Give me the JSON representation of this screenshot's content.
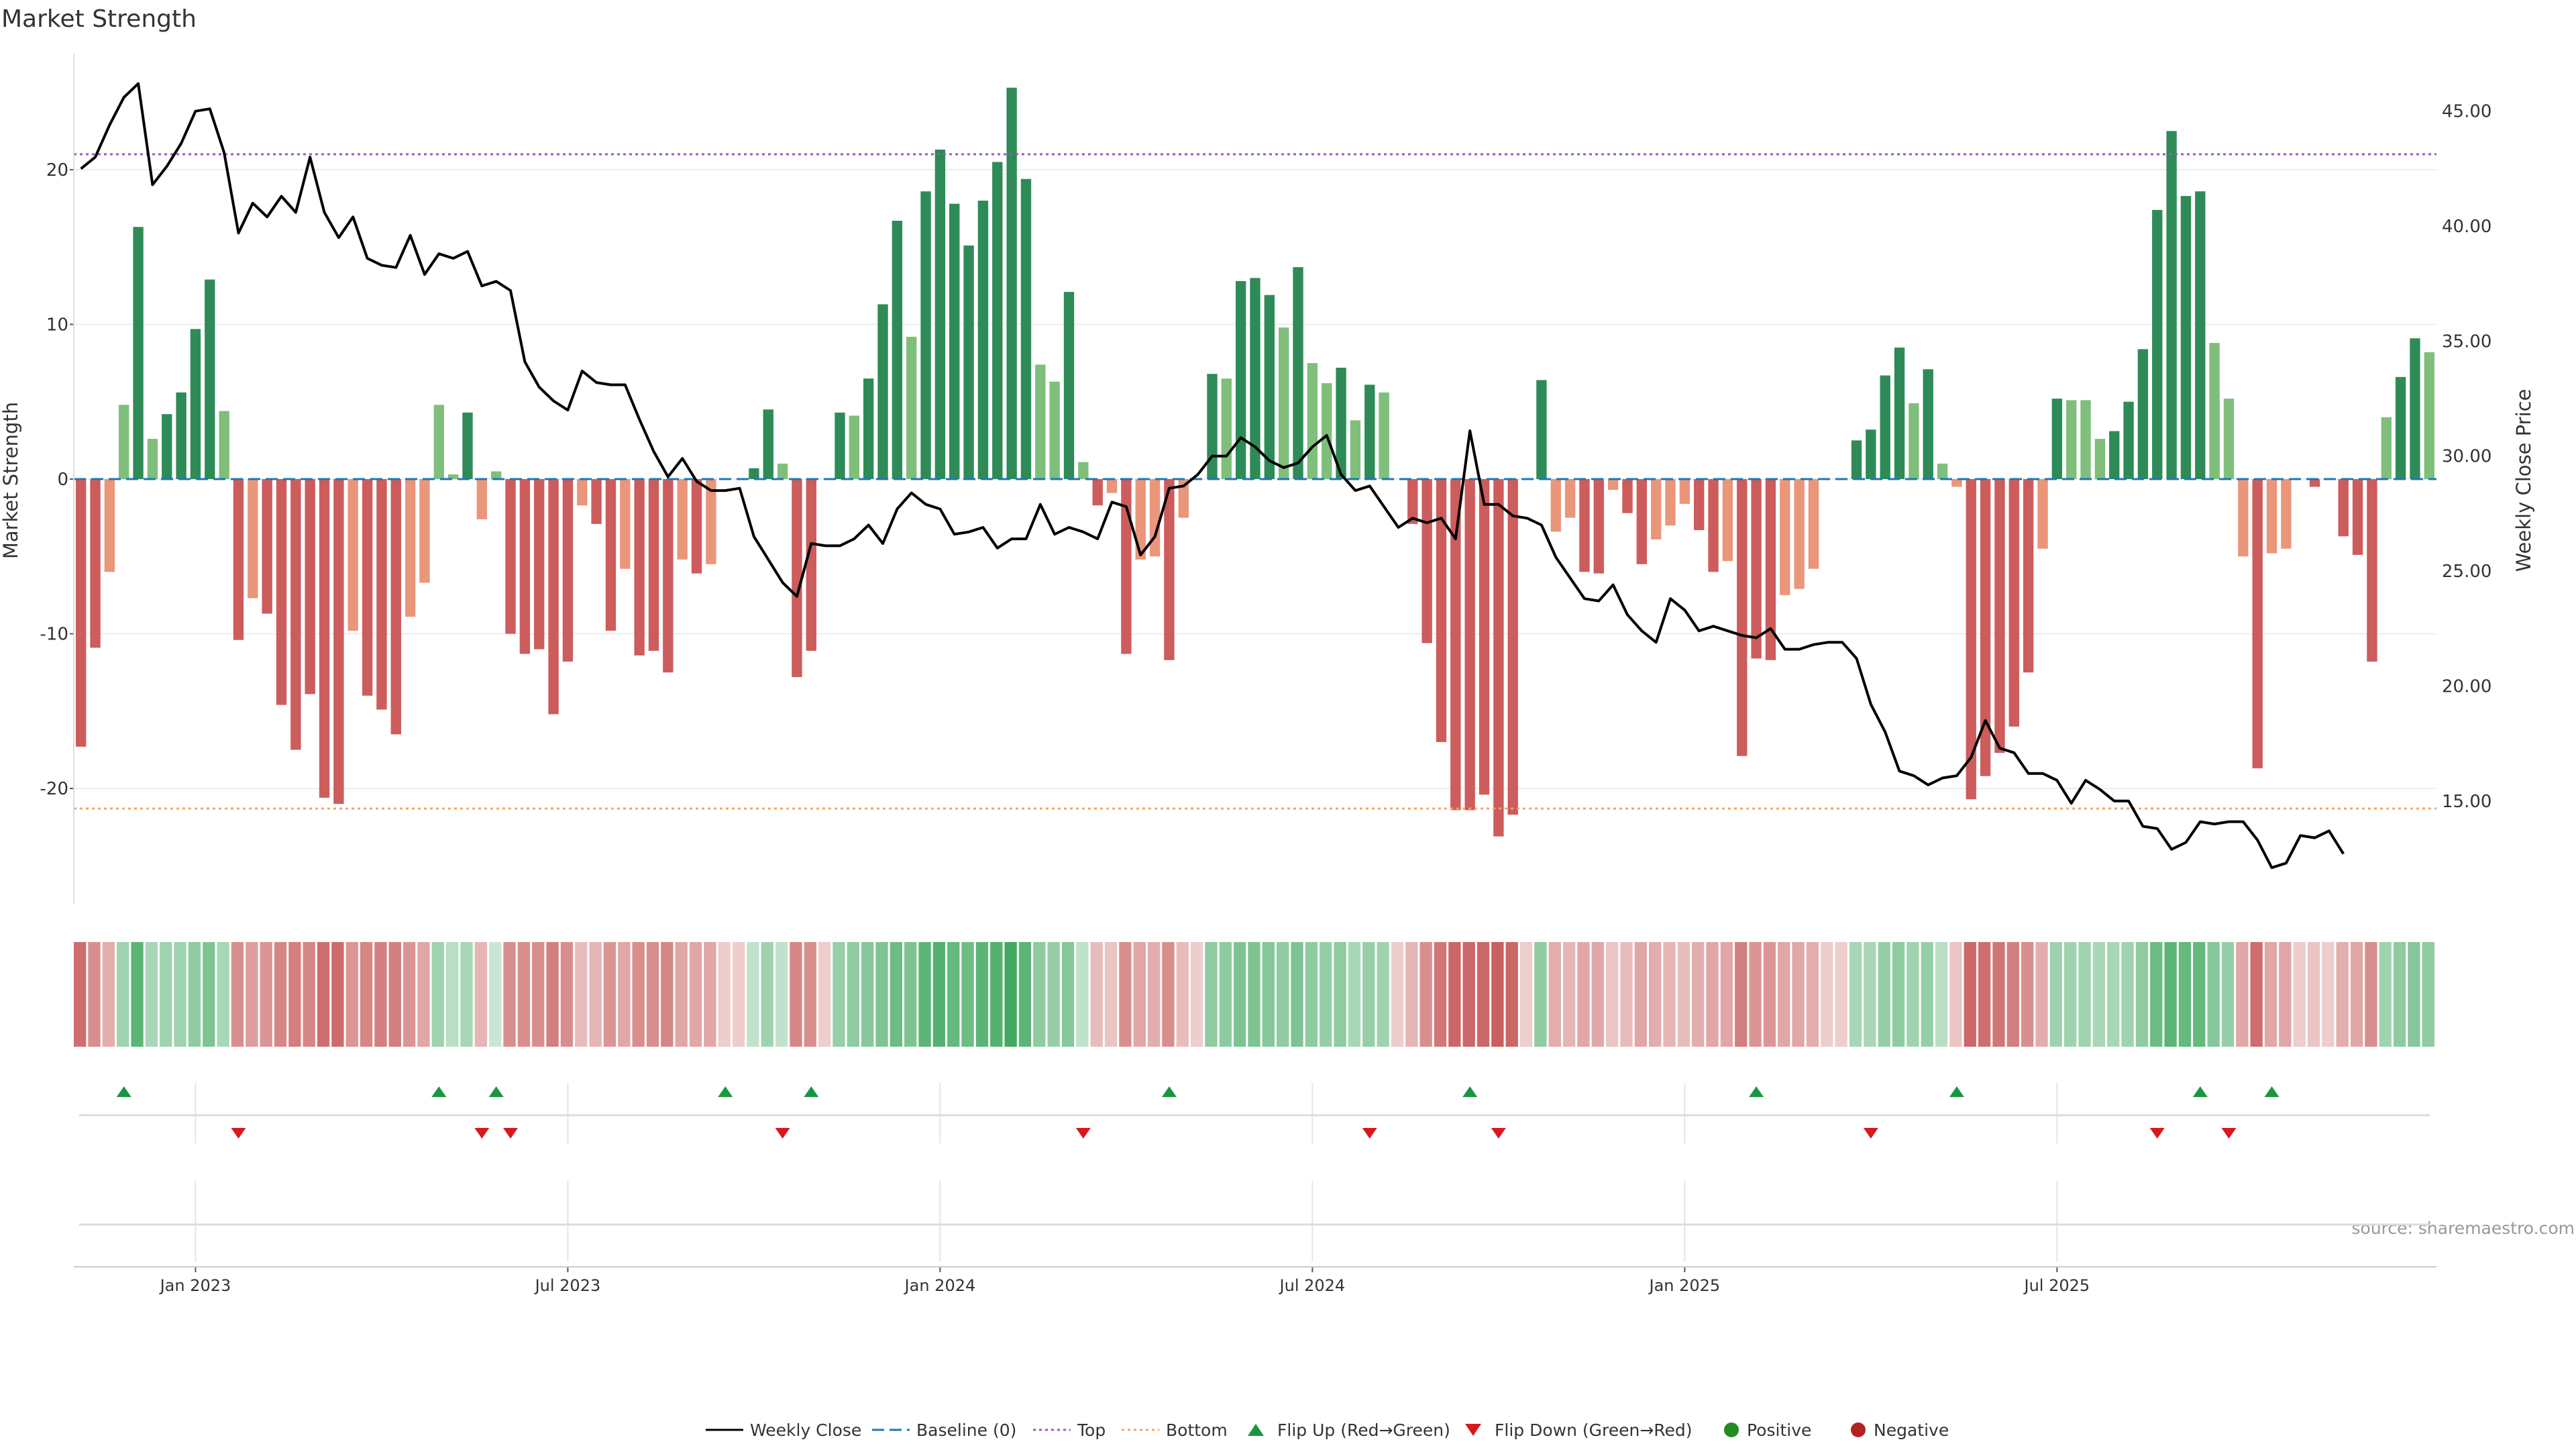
{
  "title": "Market Strength",
  "source": "source: sharemaestro.com",
  "colors": {
    "pos_strong": "#2e8b57",
    "pos_light": "#7fbf7b",
    "neg_strong": "#cd5c5c",
    "neg_light": "#e9967a",
    "price_line": "#000000",
    "top_line": "#9b59b6",
    "bottom_line": "#f4a460",
    "baseline": "#1f77b4",
    "flip_up": "#1a9641",
    "flip_down": "#d7191c",
    "positive_dot": "#228b22",
    "negative_dot": "#b22222"
  },
  "chart_data": {
    "type": "bar",
    "title": "Market Strength",
    "ylabel": "Market Strength",
    "y2label": "Weekly Close Price",
    "ylim": [
      -27.5,
      27.5
    ],
    "y2lim": [
      10.5,
      47.5
    ],
    "yticks": [
      -20,
      -10,
      0,
      10,
      20
    ],
    "y2ticks": [
      "15.00",
      "20.00",
      "25.00",
      "30.00",
      "35.00",
      "40.00",
      "45.00"
    ],
    "y2tick_values": [
      15,
      20,
      25,
      30,
      35,
      40,
      45
    ],
    "top_level": 21,
    "bottom_level": -21.3,
    "x_tick_labels": [
      "Jan 2023",
      "Jul 2023",
      "Jan 2024",
      "Jul 2024",
      "Jan 2025",
      "Jul 2025"
    ],
    "x_tick_index": [
      8,
      34,
      60,
      86,
      112,
      138
    ],
    "strength": [
      -17.3,
      -10.9,
      -6.0,
      4.8,
      16.3,
      2.6,
      4.2,
      5.6,
      9.7,
      12.9,
      4.4,
      -10.4,
      -7.7,
      -8.7,
      -14.6,
      -17.5,
      -13.9,
      -20.6,
      -21.0,
      -9.8,
      -14.0,
      -14.9,
      -16.5,
      -8.9,
      -6.7,
      4.8,
      0.3,
      4.3,
      -2.6,
      0.5,
      -10.0,
      -11.3,
      -11.0,
      -15.2,
      -11.8,
      -1.7,
      -2.9,
      -9.8,
      -5.8,
      -11.4,
      -11.1,
      -12.5,
      -5.2,
      -6.1,
      -5.5,
      0.0,
      0.0,
      0.7,
      4.5,
      1.0,
      -12.8,
      -11.1,
      0.0,
      4.3,
      4.1,
      6.5,
      11.3,
      16.7,
      9.2,
      18.6,
      21.3,
      17.8,
      15.1,
      18.0,
      20.5,
      25.3,
      19.4,
      7.4,
      6.3,
      12.1,
      1.1,
      -1.7,
      -0.9,
      -11.3,
      -5.2,
      -5.0,
      -11.7,
      -2.5,
      0.0,
      6.8,
      6.5,
      12.8,
      13.0,
      11.9,
      9.8,
      13.7,
      7.5,
      6.2,
      7.2,
      3.8,
      6.1,
      5.6,
      0.0,
      -2.9,
      -10.6,
      -17.0,
      -21.4,
      -21.4,
      -20.4,
      -23.1,
      -21.7,
      0.0,
      6.4,
      -3.4,
      -2.5,
      -6.0,
      -6.1,
      -0.7,
      -2.2,
      -5.5,
      -3.9,
      -3.0,
      -1.6,
      -3.3,
      -6.0,
      -5.3,
      -17.9,
      -11.6,
      -11.7,
      -7.5,
      -7.1,
      -5.8,
      0.0,
      0.0,
      2.5,
      3.2,
      6.7,
      8.5,
      4.9,
      7.1,
      1.0,
      -0.5,
      -20.7,
      -19.2,
      -17.7,
      -16.0,
      -12.5,
      -4.5,
      5.2,
      5.1,
      5.1,
      2.6,
      3.1,
      5.0,
      8.4,
      17.4,
      22.5,
      18.3,
      18.6,
      8.8,
      5.2,
      -5.0,
      -18.7,
      -4.8,
      -4.5,
      0.0,
      -0.5,
      0.0,
      -3.7,
      -4.9,
      -11.8,
      4.0,
      6.6,
      9.1,
      8.2
    ],
    "price": [
      42.5,
      43.0,
      44.4,
      45.6,
      46.2,
      41.8,
      42.6,
      43.6,
      45.0,
      45.1,
      43.2,
      39.7,
      41.0,
      40.4,
      41.3,
      40.6,
      43.0,
      40.6,
      39.5,
      40.4,
      38.6,
      38.3,
      38.2,
      39.6,
      37.9,
      38.8,
      38.6,
      38.9,
      37.4,
      37.6,
      37.2,
      34.1,
      33.0,
      32.4,
      32.0,
      33.7,
      33.2,
      33.1,
      33.1,
      31.6,
      30.2,
      29.1,
      29.9,
      28.9,
      28.5,
      28.5,
      28.6,
      26.5,
      25.5,
      24.5,
      23.9,
      26.2,
      26.1,
      26.1,
      26.4,
      27.0,
      26.2,
      27.7,
      28.4,
      27.9,
      27.7,
      26.6,
      26.7,
      26.9,
      26.0,
      26.4,
      26.4,
      27.9,
      26.6,
      26.9,
      26.7,
      26.4,
      28.0,
      27.8,
      25.7,
      26.5,
      28.6,
      28.7,
      29.2,
      30.0,
      30.0,
      30.8,
      30.4,
      29.8,
      29.5,
      29.7,
      30.4,
      30.9,
      29.2,
      28.5,
      28.7,
      27.8,
      26.9,
      27.3,
      27.1,
      27.3,
      26.4,
      31.1,
      27.9,
      27.9,
      27.4,
      27.3,
      27.0,
      25.6,
      24.7,
      23.8,
      23.7,
      24.4,
      23.1,
      22.4,
      21.9,
      23.8,
      23.3,
      22.4,
      22.6,
      22.4,
      22.2,
      22.1,
      22.5,
      21.6,
      21.6,
      21.8,
      21.9,
      21.9,
      21.2,
      19.2,
      18.0,
      16.3,
      16.1,
      15.7,
      16.0,
      16.1,
      16.9,
      18.5,
      17.3,
      17.1,
      16.2,
      16.2,
      15.9,
      14.9,
      15.9,
      15.5,
      15.0,
      15.0,
      13.9,
      13.8,
      12.9,
      13.2,
      14.1,
      14.0,
      14.1,
      14.1,
      13.3,
      12.1,
      12.3,
      13.5,
      13.4,
      13.7,
      12.7
    ],
    "heat_strip": [
      -0.7,
      -0.5,
      -0.3,
      0.35,
      0.75,
      0.3,
      0.35,
      0.35,
      0.45,
      0.55,
      0.3,
      -0.5,
      -0.4,
      -0.45,
      -0.55,
      -0.6,
      -0.55,
      -0.7,
      -0.72,
      -0.45,
      -0.55,
      -0.6,
      -0.6,
      -0.45,
      -0.35,
      0.35,
      0.2,
      0.3,
      -0.25,
      0.1,
      -0.5,
      -0.5,
      -0.5,
      -0.6,
      -0.5,
      -0.2,
      -0.25,
      -0.45,
      -0.35,
      -0.5,
      -0.5,
      -0.55,
      -0.35,
      -0.35,
      -0.35,
      -0.1,
      -0.1,
      0.15,
      0.35,
      0.15,
      -0.55,
      -0.5,
      -0.1,
      0.4,
      0.45,
      0.5,
      0.55,
      0.65,
      0.55,
      0.75,
      0.8,
      0.7,
      0.65,
      0.75,
      0.8,
      0.9,
      0.75,
      0.45,
      0.4,
      0.5,
      0.15,
      -0.2,
      -0.15,
      -0.5,
      -0.35,
      -0.3,
      -0.5,
      -0.2,
      -0.1,
      0.45,
      0.45,
      0.55,
      0.55,
      0.5,
      0.45,
      0.55,
      0.45,
      0.4,
      0.45,
      0.3,
      0.4,
      0.35,
      -0.1,
      -0.25,
      -0.5,
      -0.65,
      -0.75,
      -0.75,
      -0.75,
      -0.8,
      -0.75,
      -0.1,
      0.45,
      -0.3,
      -0.25,
      -0.35,
      -0.35,
      -0.15,
      -0.2,
      -0.35,
      -0.3,
      -0.25,
      -0.2,
      -0.3,
      -0.35,
      -0.35,
      -0.6,
      -0.45,
      -0.45,
      -0.35,
      -0.35,
      -0.3,
      -0.1,
      -0.1,
      0.3,
      0.3,
      0.4,
      0.45,
      0.35,
      0.4,
      0.2,
      -0.15,
      -0.75,
      -0.7,
      -0.65,
      -0.6,
      -0.5,
      -0.3,
      0.35,
      0.35,
      0.35,
      0.3,
      0.3,
      0.35,
      0.45,
      0.65,
      0.75,
      0.7,
      0.7,
      0.5,
      0.4,
      -0.35,
      -0.7,
      -0.35,
      -0.35,
      -0.1,
      -0.15,
      -0.1,
      -0.3,
      -0.35,
      -0.5,
      0.35,
      0.45,
      0.5,
      0.45
    ],
    "flip_up_index": [
      3,
      25,
      29,
      45,
      51,
      76,
      97,
      117,
      131,
      148,
      153
    ],
    "flip_down_index": [
      11,
      28,
      30,
      49,
      70,
      90,
      99,
      125,
      145,
      150
    ]
  },
  "legend": {
    "weekly_close": "Weekly Close",
    "baseline": "Baseline (0)",
    "top": "Top",
    "bottom": "Bottom",
    "flip_up": "Flip Up (Red→Green)",
    "flip_down": "Flip Down (Green→Red)",
    "positive": "Positive",
    "negative": "Negative"
  }
}
